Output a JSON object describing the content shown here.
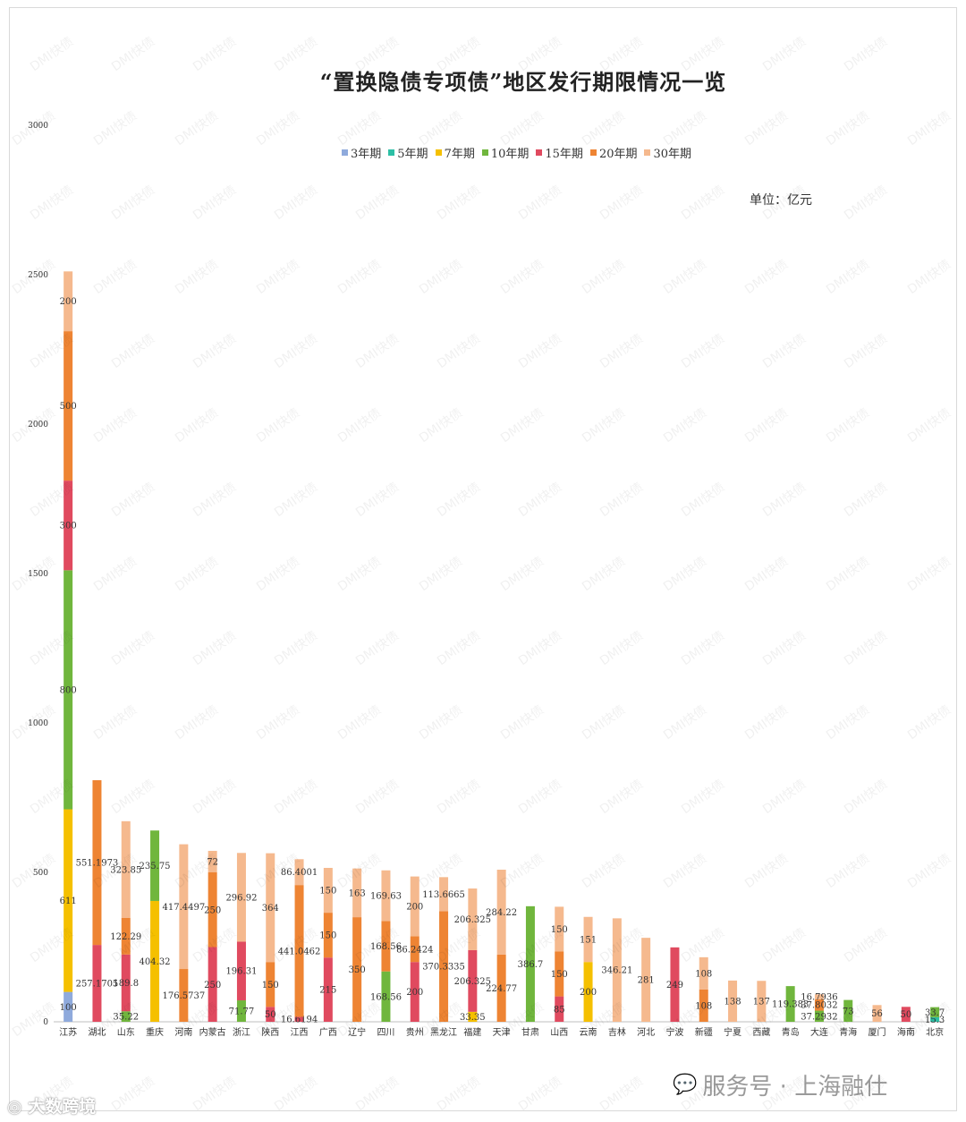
{
  "watermarks": {
    "tile_text": "DMI快债",
    "bottom_left": "大数跨境",
    "bottom_right": "服务号 · 上海融仕"
  },
  "chart_data": {
    "type": "bar",
    "stacked": true,
    "title": "“置换隐债专项债”地区发行期限情况一览",
    "unit": "单位：亿元",
    "ylim": [
      0,
      3000
    ],
    "yticks": [
      0,
      500,
      1000,
      1500,
      2000,
      2500,
      3000
    ],
    "legend_position": "top",
    "grid": false,
    "categories": [
      "江苏",
      "湖北",
      "山东",
      "重庆",
      "河南",
      "内蒙古",
      "浙江",
      "陕西",
      "江西",
      "广西",
      "辽宁",
      "四川",
      "贵州",
      "黑龙江",
      "福建",
      "天津",
      "甘肃",
      "山西",
      "云南",
      "吉林",
      "河北",
      "宁波",
      "新疆",
      "宁夏",
      "西藏",
      "青岛",
      "大连",
      "青海",
      "厦门",
      "海南",
      "北京"
    ],
    "series": [
      {
        "name": "3年期",
        "color": "#8faadc",
        "values": [
          100,
          0,
          0,
          0,
          0,
          0,
          0,
          0,
          0,
          0,
          0,
          0,
          0,
          0,
          0,
          0,
          0,
          0,
          0,
          0,
          0,
          0,
          0,
          0,
          0,
          0,
          0,
          0,
          0,
          0,
          0
        ]
      },
      {
        "name": "5年期",
        "color": "#2dbfa5",
        "values": [
          0,
          0,
          0,
          0,
          0,
          0,
          0,
          0,
          0,
          0,
          0,
          0,
          0,
          0,
          0,
          0,
          0,
          0,
          0,
          0,
          0,
          0,
          0,
          0,
          0,
          0,
          0,
          0,
          0,
          0,
          15.3
        ]
      },
      {
        "name": "7年期",
        "color": "#f5c000",
        "values": [
          611,
          0,
          0,
          404.32,
          0,
          0,
          0,
          0,
          0,
          0,
          0,
          0,
          0,
          0,
          33.35,
          0,
          0,
          0,
          200,
          0,
          0,
          0,
          0,
          0,
          0,
          0,
          0,
          0,
          0,
          0,
          0
        ]
      },
      {
        "name": "10年期",
        "color": "#70b63d",
        "values": [
          800,
          0,
          35.22,
          235.75,
          0,
          0,
          71.77,
          0,
          0,
          0,
          0,
          168.56,
          0,
          0,
          0,
          0,
          386.7,
          0,
          0,
          0,
          0,
          0,
          0,
          0,
          0,
          119.383,
          37.2932,
          73,
          0,
          0,
          33.7
        ]
      },
      {
        "name": "15年期",
        "color": "#e04a5f",
        "values": [
          300,
          257.1705,
          189.8,
          0,
          0,
          250,
          196.31,
          50,
          16.6194,
          215,
          0,
          0,
          200,
          0,
          206.325,
          0,
          0,
          85,
          0,
          0,
          0,
          249,
          0,
          0,
          0,
          0,
          0,
          0,
          0,
          50,
          0
        ]
      },
      {
        "name": "20年期",
        "color": "#ee8433",
        "values": [
          500,
          551.1973,
          122.29,
          0,
          176.5737,
          250,
          0,
          150,
          441.0462,
          150,
          350,
          168.56,
          86.2424,
          370.3335,
          0,
          224.77,
          0,
          150,
          0,
          0,
          0,
          0,
          108,
          0,
          0,
          0,
          37.8032,
          0,
          0,
          0,
          0
        ]
      },
      {
        "name": "30年期",
        "color": "#f5b98e",
        "values": [
          200,
          0,
          323.85,
          0,
          417.4497,
          72,
          296.92,
          364,
          86.4001,
          150,
          163,
          169.63,
          200,
          113.6665,
          206.325,
          284.22,
          0,
          150,
          151,
          346.21,
          281,
          0,
          108,
          138,
          137,
          0,
          16.7936,
          0,
          56,
          0,
          0
        ]
      }
    ]
  }
}
